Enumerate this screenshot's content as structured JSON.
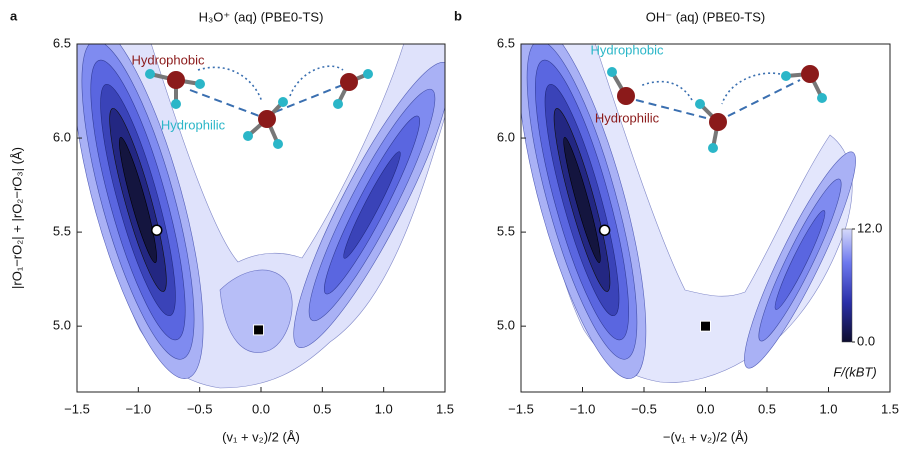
{
  "chart_data": [
    {
      "type": "contour",
      "panel_label": "a",
      "title": "H₃O⁺ (aq) (PBE0-TS)",
      "xlabel": "(v₁ + v₂)/2 (Å)",
      "ylabel": "|rO₁−rO₂| + |rO₂−rO₃| (Å)",
      "xlim": [
        -1.5,
        1.5
      ],
      "ylim": [
        4.65,
        6.5
      ],
      "xticks": [
        {
          "value": -1.5,
          "label": "−1.5"
        },
        {
          "value": -1,
          "label": "−1.0"
        },
        {
          "value": -0.5,
          "label": "−0.5"
        },
        {
          "value": 0,
          "label": "0.0"
        },
        0.5,
        {
          "value": 1,
          "label": "1.0"
        },
        1.5
      ],
      "yticks": [
        {
          "value": 5,
          "label": "5.0"
        },
        5.5,
        {
          "value": 6,
          "label": "6.0"
        },
        6.5
      ],
      "points": [
        {
          "x": -0.85,
          "y": 5.51,
          "marker": "circle"
        },
        {
          "x": -0.02,
          "y": 4.98,
          "marker": "square"
        }
      ],
      "annotations": [
        {
          "text": "Hydrophobic",
          "color": "#8b1a1a"
        },
        {
          "text": "Hydrophilic",
          "color": "#2bb6c8"
        }
      ]
    },
    {
      "type": "contour",
      "panel_label": "b",
      "title": "OH⁻ (aq) (PBE0-TS)",
      "xlabel": "−(v₁ + v₂)/2 (Å)",
      "xlim": [
        -1.5,
        1.5
      ],
      "ylim": [
        4.65,
        6.5
      ],
      "xticks": [
        {
          "value": -1.5,
          "label": "−1.5"
        },
        {
          "value": -1,
          "label": "−1.0"
        },
        {
          "value": -0.5,
          "label": "−0.5"
        },
        {
          "value": 0,
          "label": "0.0"
        },
        0.5,
        {
          "value": 1,
          "label": "1.0"
        },
        1.5
      ],
      "yticks": [
        {
          "value": 5,
          "label": "5.0"
        },
        5.5,
        {
          "value": 6,
          "label": "6.0"
        },
        6.5
      ],
      "points": [
        {
          "x": -0.82,
          "y": 5.51,
          "marker": "circle"
        },
        {
          "x": 0,
          "y": 5,
          "marker": "square"
        }
      ],
      "annotations": [
        {
          "text": "Hydrophobic",
          "color": "#2bb6c8"
        },
        {
          "text": "Hydrophilic",
          "color": "#8b1a1a"
        }
      ],
      "colorbar": {
        "clim": [
          0,
          12
        ],
        "ticks": [
          {
            "value": 12,
            "label": "12.0"
          },
          {
            "value": 0,
            "label": "0.0"
          }
        ],
        "label": "F/(kBT)"
      }
    }
  ]
}
